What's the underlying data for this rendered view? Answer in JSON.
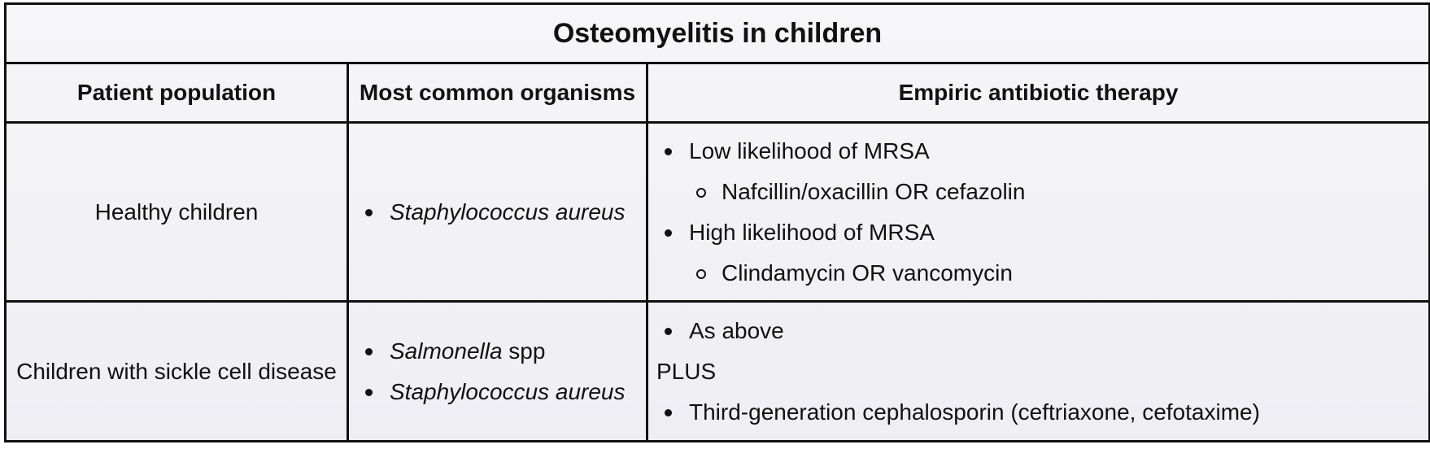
{
  "table": {
    "title": "Osteomyelitis in children",
    "headers": [
      "Patient population",
      "Most common organisms",
      "Empiric antibiotic therapy"
    ],
    "rows": [
      {
        "population": "Healthy children",
        "organisms": [
          {
            "italic": "Staphylococcus aureus",
            "suffix": ""
          }
        ],
        "therapy": {
          "items": [
            {
              "label": "Low likelihood of MRSA",
              "sub": "Nafcillin/oxacillin OR cefazolin"
            },
            {
              "label": "High likelihood of MRSA",
              "sub": "Clindamycin OR vancomycin"
            }
          ]
        }
      },
      {
        "population": "Children with sickle cell disease",
        "organisms": [
          {
            "italic": "Salmonella",
            "suffix": " spp"
          },
          {
            "italic": "Staphylococcus aureus",
            "suffix": ""
          }
        ],
        "therapy": {
          "first": "As above",
          "plus": "PLUS",
          "second": "Third-generation cephalosporin (ceftriaxone, cefotaxime)"
        }
      }
    ]
  }
}
